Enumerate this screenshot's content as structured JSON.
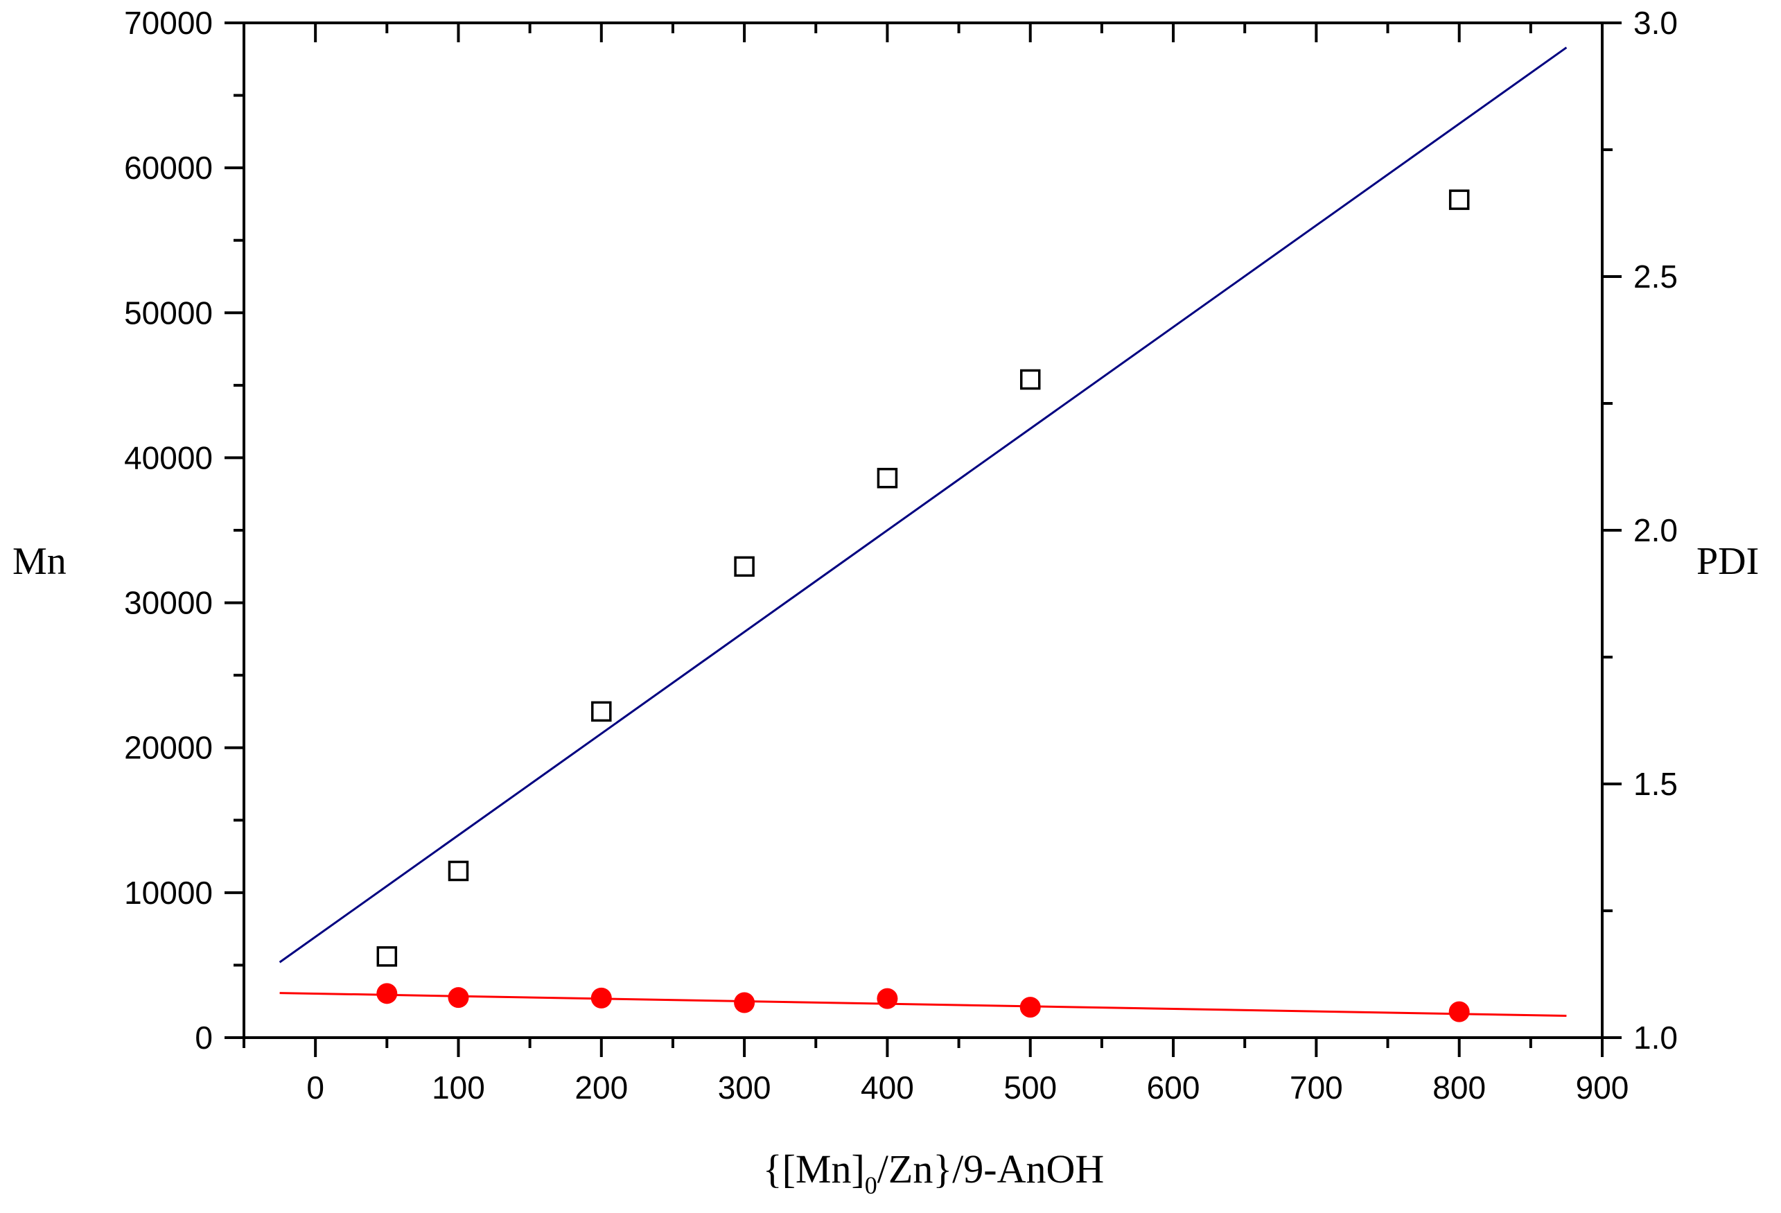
{
  "chart_data": {
    "type": "scatter",
    "title": "",
    "xlabel": {
      "prefix": "{[Mn]",
      "subscript": "0",
      "suffix": "/Zn}/9-AnOH"
    },
    "ylabel_left": "Mn",
    "ylabel_right": "PDI",
    "xlim": [
      -50,
      900
    ],
    "ylim_left": [
      0,
      70000
    ],
    "ylim_right": [
      1.0,
      3.0
    ],
    "x_ticks": [
      0,
      100,
      200,
      300,
      400,
      500,
      600,
      700,
      800,
      900
    ],
    "y_left_ticks": [
      0,
      10000,
      20000,
      30000,
      40000,
      50000,
      60000,
      70000
    ],
    "y_right_ticks": [
      "1.0",
      "1.5",
      "2.0",
      "2.5",
      "3.0"
    ],
    "grid": false,
    "series": [
      {
        "marker": "open-square",
        "axis": "left",
        "color": "#000000",
        "x": [
          50,
          100,
          200,
          300,
          400,
          500,
          800
        ],
        "y": [
          5600,
          11500,
          22500,
          32500,
          38600,
          45400,
          57800
        ]
      },
      {
        "marker": "filled-circle",
        "axis": "right",
        "color": "#ff0000",
        "x": [
          50,
          100,
          200,
          300,
          400,
          500,
          800
        ],
        "y": [
          1.087,
          1.079,
          1.078,
          1.069,
          1.077,
          1.06,
          1.051
        ]
      }
    ],
    "fit_lines": [
      {
        "axis": "left",
        "color": "#000080",
        "x": [
          -25,
          875
        ],
        "y": [
          5200,
          68300
        ]
      },
      {
        "axis": "right",
        "color": "#ff0000",
        "x": [
          -25,
          875
        ],
        "y": [
          1.088,
          1.043
        ]
      }
    ]
  }
}
